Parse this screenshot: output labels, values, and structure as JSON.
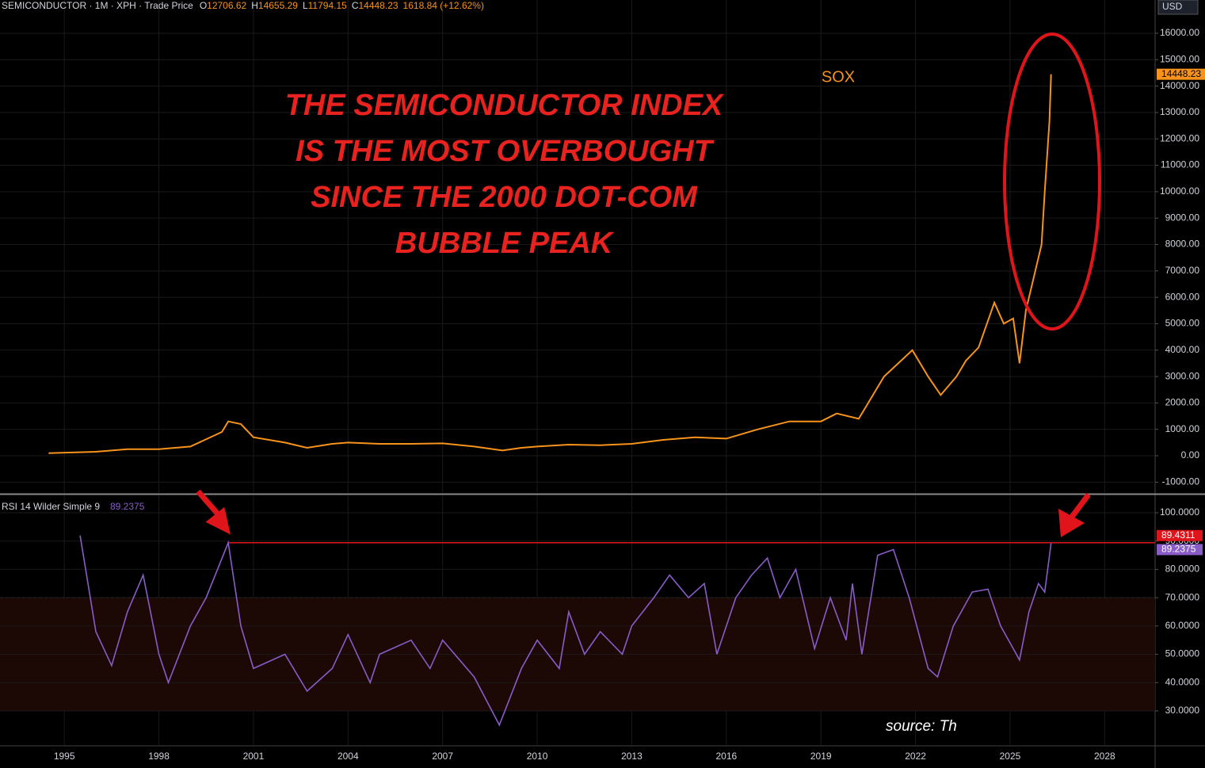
{
  "header": {
    "symbol": "SEMICONDUCTOR · 1M · XPH · Trade Price",
    "ohlc": [
      {
        "key": "O",
        "value": 12706.62
      },
      {
        "key": "H",
        "value": 14655.29
      },
      {
        "key": "L",
        "value": 11794.15
      },
      {
        "key": "C",
        "value": 14448.23
      }
    ],
    "change": "1618.84 (+12.62%)"
  },
  "currency": "USD",
  "source": "source: Th",
  "chart_data": [
    {
      "type": "line",
      "annotation": [
        "THE SEMICONDUCTOR INDEX",
        "IS THE MOST OVERBOUGHT",
        "SINCE THE 2000 DOT-COM",
        "BUBBLE PEAK"
      ],
      "series": [
        {
          "name": "SOX",
          "color": "#f7931a",
          "x": [
            1994.5,
            1996,
            1997,
            1998,
            1999,
            2000.0,
            2000.2,
            2000.6,
            2001,
            2002,
            2002.7,
            2003.5,
            2004,
            2005,
            2006,
            2007,
            2008,
            2008.9,
            2009.5,
            2010,
            2011,
            2012,
            2013,
            2014,
            2015,
            2016,
            2017,
            2018,
            2019,
            2019.5,
            2020.2,
            2020.5,
            2021,
            2021.9,
            2022.4,
            2022.8,
            2023.3,
            2023.6,
            2024.0,
            2024.5,
            2024.8,
            2025.1,
            2025.3,
            2025.5,
            2025.8,
            2026.0,
            2026.1,
            2026.25,
            2026.3
          ],
          "values": [
            100,
            150,
            250,
            250,
            350,
            900,
            1300,
            1200,
            700,
            500,
            300,
            450,
            500,
            450,
            450,
            470,
            350,
            200,
            300,
            350,
            420,
            400,
            450,
            600,
            700,
            650,
            1000,
            1300,
            1300,
            1600,
            1400,
            2000,
            3000,
            4000,
            3000,
            2300,
            3000,
            3600,
            4100,
            5800,
            5000,
            5200,
            3500,
            5500,
            7000,
            8000,
            10000,
            12700,
            14448.23
          ]
        }
      ],
      "last_value": 14448.23,
      "xlim": [
        1992.96,
        2029.6
      ],
      "ylim": [
        -1410,
        17260
      ],
      "yticks": [
        {
          "value": -1000,
          "label": "-1000.00"
        },
        {
          "value": 0,
          "label": "0.00"
        },
        {
          "value": 1000,
          "label": "1000.00"
        },
        {
          "value": 2000,
          "label": "2000.00"
        },
        {
          "value": 3000,
          "label": "3000.00"
        },
        {
          "value": 4000,
          "label": "4000.00"
        },
        {
          "value": 5000,
          "label": "5000.00"
        },
        {
          "value": 6000,
          "label": "6000.00"
        },
        {
          "value": 7000,
          "label": "7000.00"
        },
        {
          "value": 8000,
          "label": "8000.00"
        },
        {
          "value": 9000,
          "label": "9000.00"
        },
        {
          "value": 10000,
          "label": "10000.00"
        },
        {
          "value": 11000,
          "label": "11000.00"
        },
        {
          "value": 12000,
          "label": "12000.00"
        },
        {
          "value": 13000,
          "label": "13000.00"
        },
        {
          "value": 14000,
          "label": "14000.00"
        },
        {
          "value": 15000,
          "label": "15000.00"
        },
        {
          "value": 16000,
          "label": "16000.00"
        }
      ],
      "grid": true
    },
    {
      "type": "line",
      "title": "RSI 14 Wilder Simple 9",
      "series": [
        {
          "name": "RSI",
          "color": "#8a5cc7",
          "x": [
            1995.5,
            1996,
            1996.5,
            1997,
            1997.5,
            1998,
            1998.3,
            1999,
            1999.5,
            2000.2,
            2000.6,
            2001,
            2002,
            2002.7,
            2003.5,
            2004,
            2004.7,
            2005,
            2006,
            2006.6,
            2007,
            2008,
            2008.8,
            2009.5,
            2010,
            2010.7,
            2011,
            2011.5,
            2012,
            2012.7,
            2013,
            2013.7,
            2014.2,
            2014.8,
            2015.3,
            2015.7,
            2016.3,
            2016.8,
            2017.3,
            2017.7,
            2018.2,
            2018.8,
            2019.3,
            2019.8,
            2020,
            2020.3,
            2020.8,
            2021.3,
            2021.8,
            2022.4,
            2022.7,
            2023.2,
            2023.8,
            2024.3,
            2024.7,
            2025.3,
            2025.6,
            2025.9,
            2026.1,
            2026.3
          ],
          "values": [
            92,
            58,
            46,
            65,
            78,
            50,
            40,
            60,
            70,
            89.4311,
            60,
            45,
            50,
            37,
            45,
            57,
            40,
            50,
            55,
            45,
            55,
            42,
            25,
            45,
            55,
            45,
            65,
            50,
            58,
            50,
            60,
            70,
            78,
            70,
            75,
            50,
            70,
            78,
            84,
            70,
            80,
            52,
            70,
            55,
            75,
            50,
            85,
            87,
            70,
            45,
            42,
            60,
            72,
            73,
            60,
            48,
            65,
            75,
            72,
            89.2375
          ]
        }
      ],
      "last_value": 89.2375,
      "reference_line": 89.4311,
      "bands": [
        30,
        70
      ],
      "xlim": [
        1992.96,
        2029.6
      ],
      "ylim": [
        17.95,
        106.16
      ],
      "yticks": [
        {
          "value": 30,
          "label": "30.0000"
        },
        {
          "value": 40,
          "label": "40.0000"
        },
        {
          "value": 50,
          "label": "50.0000"
        },
        {
          "value": 60,
          "label": "60.0000"
        },
        {
          "value": 70,
          "label": "70.0000"
        },
        {
          "value": 80,
          "label": "80.0000"
        },
        {
          "value": 90,
          "label": "90.0000"
        },
        {
          "value": 100,
          "label": "100.0000"
        }
      ],
      "xticks": [
        1995,
        1998,
        2001,
        2004,
        2007,
        2010,
        2013,
        2016,
        2019,
        2022,
        2025,
        2028
      ],
      "grid": true
    }
  ]
}
